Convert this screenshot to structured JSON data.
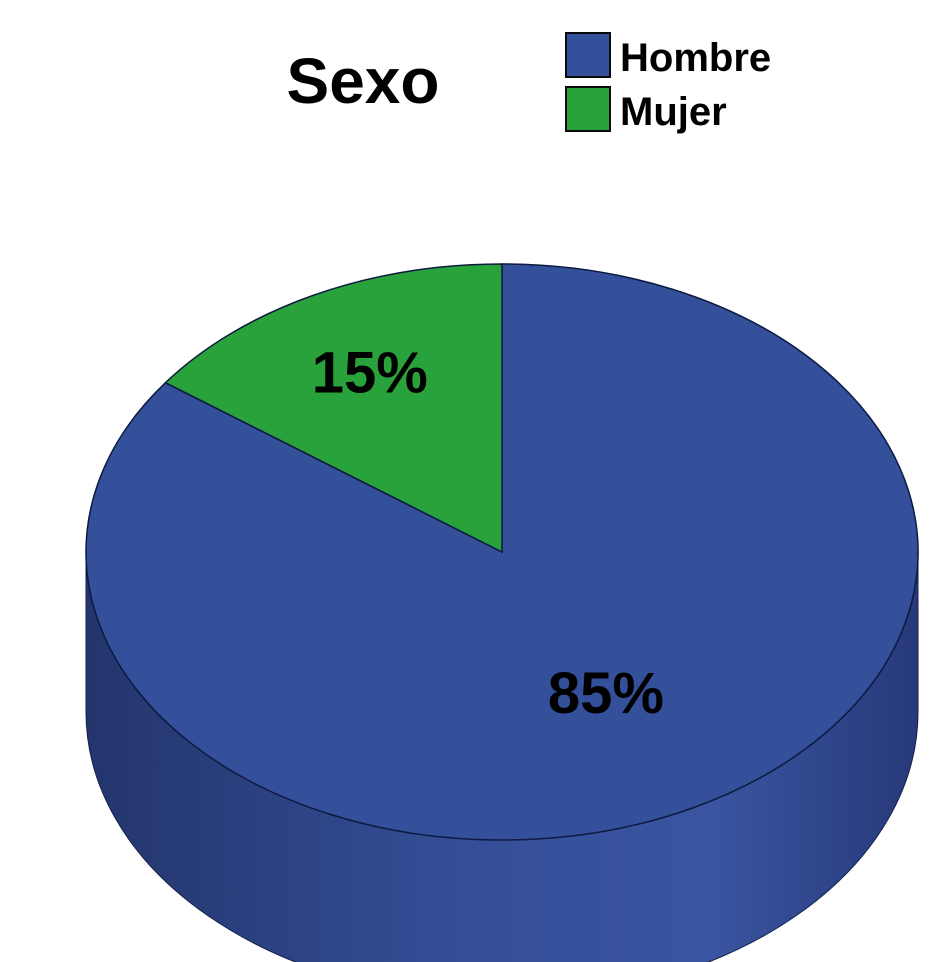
{
  "chart_data": {
    "type": "pie",
    "title": "Sexo",
    "legend_position": "top-right",
    "categories": [
      "Hombre",
      "Mujer"
    ],
    "values": [
      85,
      15
    ],
    "labels": [
      "85%",
      "15%"
    ],
    "colors": [
      "#34509a",
      "#2aa23c"
    ],
    "style": "3d"
  }
}
